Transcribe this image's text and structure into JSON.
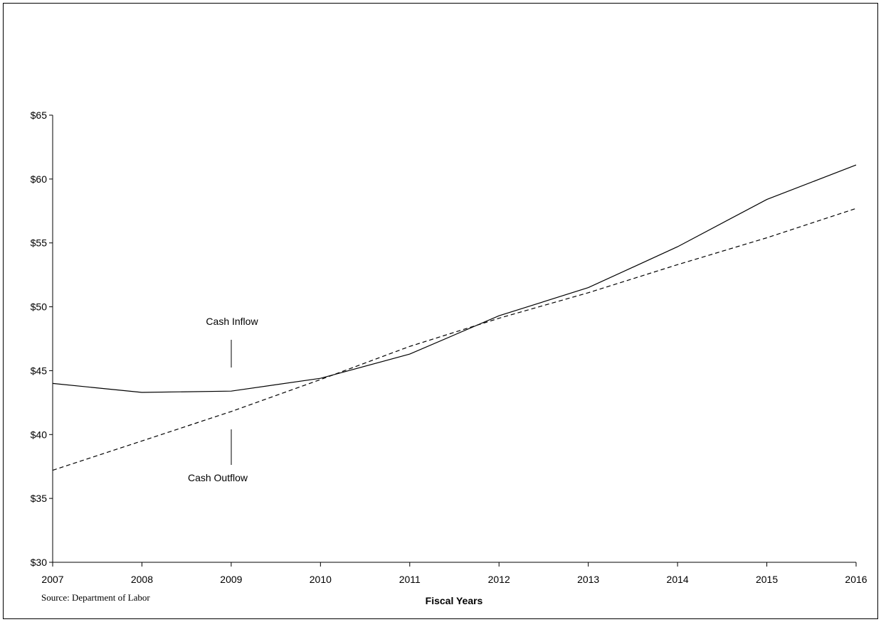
{
  "chart_data": {
    "type": "line",
    "title": "",
    "xlabel": "Fiscal Years",
    "ylabel": "",
    "x": [
      2007,
      2008,
      2009,
      2010,
      2011,
      2012,
      2013,
      2014,
      2015,
      2016
    ],
    "x_tick_labels": [
      "2007",
      "2008",
      "2009",
      "2010",
      "2011",
      "2012",
      "2013",
      "2014",
      "2015",
      "2016"
    ],
    "ylim": [
      30,
      65
    ],
    "y_ticks": [
      30,
      35,
      40,
      45,
      50,
      55,
      60,
      65
    ],
    "y_tick_labels": [
      "$30",
      "$35",
      "$40",
      "$45",
      "$50",
      "$55",
      "$60",
      "$65"
    ],
    "grid": false,
    "series": [
      {
        "name": "Cash Inflow",
        "style": "solid",
        "values": [
          44.0,
          43.3,
          43.4,
          44.4,
          46.3,
          49.3,
          51.5,
          54.7,
          58.4,
          61.1
        ]
      },
      {
        "name": "Cash Outflow",
        "style": "dashed",
        "values": [
          37.2,
          39.5,
          41.8,
          44.3,
          46.9,
          49.1,
          51.1,
          53.3,
          55.4,
          57.7
        ]
      }
    ],
    "annotations": {
      "inflow_label": "Cash Inflow",
      "outflow_label": "Cash Outflow"
    },
    "source": "Source: Department of Labor",
    "line_color": "#000000"
  }
}
